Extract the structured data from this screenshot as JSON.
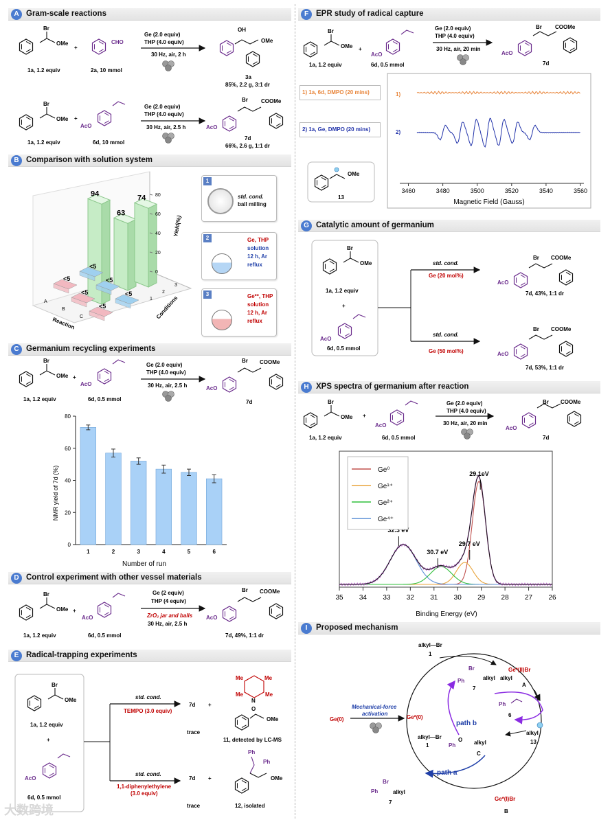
{
  "panels": {
    "A": {
      "letter": "A",
      "title": "Gram-scale reactions"
    },
    "B": {
      "letter": "B",
      "title": "Comparison with solution system"
    },
    "C": {
      "letter": "C",
      "title": "Germanium recycling experiments"
    },
    "D": {
      "letter": "D",
      "title": "Control experiment with other vessel materials"
    },
    "E": {
      "letter": "E",
      "title": "Radical-trapping experiments"
    },
    "F": {
      "letter": "F",
      "title": "EPR study of radical capture"
    },
    "G": {
      "letter": "G",
      "title": "Catalytic amount of germanium"
    },
    "H": {
      "letter": "H",
      "title": "XPS spectra of germanium after reaction"
    },
    "I": {
      "letter": "I",
      "title": "Proposed mechanism"
    }
  },
  "chem": {
    "br": "Br",
    "ome": "OMe",
    "oh": "OH",
    "cho": "CHO",
    "acO": "AcO",
    "coome": "COOMe",
    "plus": "+",
    "ge2": "Ge (2.0 equiv)",
    "thp4": "THP (4.0 equiv)",
    "cond_2h": "30 Hz, air, 2 h",
    "cond_25h": "30 Hz, air, 2.5 h",
    "cond_20min": "30 Hz, air, 20 min",
    "sub_1a": "1a, 1.2 equiv",
    "sub_2a": "2a, 10 mmol",
    "sub_6d10": "6d, 10 mmol",
    "sub_6d05": "6d, 0.5 mmol",
    "p_3a": "3a",
    "p_3a_yield": "85%, 2.2 g, 3:1 dr",
    "p_7d": "7d",
    "p_7d_gram": "66%, 2.6 g, 1:1 dr",
    "d_ge": "Ge (2 equiv)",
    "d_thp": "THP (4 equiv)",
    "d_jar": "ZrO₂ jar and balls",
    "d_yield": "7d, 49%, 1:1 dr",
    "std": "std. cond.",
    "tempo": "TEMPO (3.0 equiv)",
    "trace": "trace",
    "p_11": "11, detected by LC-MS",
    "dpe": "1,1-diphenylethylene",
    "dpe2": "(3.0 equiv)",
    "p_12": "12, isolated",
    "ph": "Ph",
    "me": "Me",
    "n": "N",
    "o": "O",
    "g_ge20": "Ge (20 mol%)",
    "g_ge50": "Ge (50 mol%)",
    "g_y43": "7d, 43%, 1:1 dr",
    "g_y53": "7d, 53%, 1:1 dr",
    "r13": "13"
  },
  "panelB": {
    "z_axis_title": "Yield(%)",
    "x_axis_title": "Conditions",
    "y_axis_title": "Reaction",
    "z_ticks": [
      "0",
      "20",
      "40",
      "60",
      "80"
    ],
    "bar_labels": [
      "94",
      "63",
      "74"
    ],
    "small_labels": [
      "<5",
      "<5",
      "<5",
      "<5",
      "<5",
      "<5"
    ],
    "reaction_ticks": [
      "A",
      "B",
      "C"
    ],
    "condition_ticks": [
      "1",
      "2",
      "3"
    ],
    "legend": [
      {
        "num": "1",
        "line1": "std. cond.",
        "line2": "ball milling"
      },
      {
        "num": "2",
        "line1": "Ge, THP",
        "line2": "solution",
        "line3": "12 h, Ar",
        "line4": "reflux"
      },
      {
        "num": "3",
        "line1": "Ge**, THP",
        "line2": "solution",
        "line3": "12 h, Ar",
        "line4": "reflux"
      }
    ]
  },
  "chart_data": [
    {
      "type": "bar",
      "title": "Germanium recycling experiments",
      "xlabel": "Number of run",
      "ylabel": "NMR yield of 7d (%)",
      "categories": [
        "1",
        "2",
        "3",
        "4",
        "5",
        "6"
      ],
      "values": [
        73,
        57,
        52,
        47,
        45,
        41
      ],
      "errors": [
        1.5,
        2.5,
        2,
        2.5,
        2,
        2.5
      ],
      "ylim": [
        0,
        80
      ],
      "yticks": [
        "0",
        "20",
        "40",
        "60",
        "80"
      ],
      "bar_color": "#a9d1f7"
    },
    {
      "type": "line",
      "title": "EPR study of radical capture",
      "xlabel": "Magnetic Field (Gauss)",
      "xlim": [
        3455,
        3562
      ],
      "xticks": [
        "3460",
        "3480",
        "3500",
        "3520",
        "3540",
        "3560"
      ],
      "series": [
        {
          "name": "1) 1a, 6d, DMPO (20 mins)",
          "short": "1)",
          "color": "#e8853a"
        },
        {
          "name": "2) 1a, Ge, DMPO (20 mins)",
          "short": "2)",
          "color": "#2233aa"
        }
      ]
    },
    {
      "type": "line",
      "title": "XPS spectra of germanium after reaction",
      "xlabel": "Binding Energy (eV)",
      "xlim": [
        35,
        26
      ],
      "xticks": [
        "35",
        "34",
        "33",
        "32",
        "31",
        "30",
        "29",
        "28",
        "27",
        "26"
      ],
      "series": [
        {
          "name": "Ge⁰",
          "center": 29.1,
          "color": "#c0504d"
        },
        {
          "name": "Ge¹⁺",
          "center": 29.7,
          "color": "#e8a33a"
        },
        {
          "name": "Ge²⁺",
          "center": 30.7,
          "color": "#2fbf3a"
        },
        {
          "name": "Ge⁴⁺",
          "center": 32.3,
          "color": "#5b8fd6"
        }
      ],
      "annotations": [
        "29.1eV",
        "29.7 eV",
        "30.7 eV",
        "32.3 eV"
      ]
    }
  ],
  "panelF": {
    "box_label": "13"
  },
  "mech": {
    "alkylBr": "alkyl—Br",
    "one": "1",
    "ge0": "Ge(0)",
    "gestar0": "Ge*(0)",
    "gestarIIBr": "Ge*(II)Br",
    "gestarIBr": "Ge*(I)Br",
    "alkyl": "alkyl",
    "A": "A",
    "B": "B",
    "C": "C",
    "seven": "7",
    "six": "6",
    "thirteen": "13",
    "activation1": "Mechanical-force",
    "activation2": "activation",
    "path_a": "path a",
    "path_b": "path b"
  },
  "watermark": "大数跨境"
}
